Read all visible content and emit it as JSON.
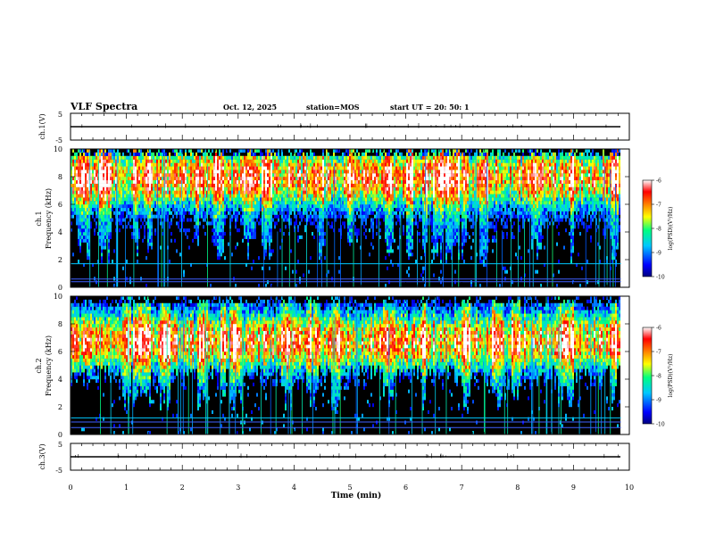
{
  "header": {
    "title": "VLF Spectra",
    "date": "Oct. 12, 2025",
    "station": "station=MOS",
    "start": "start UT =  20: 50: 1"
  },
  "chart_data": {
    "type": "heatmap",
    "title": "VLF Spectra",
    "xlabel": "Time (min)",
    "xlim": [
      0,
      10
    ],
    "x_ticks": [
      "0",
      "1",
      "2",
      "3",
      "4",
      "5",
      "6",
      "7",
      "8",
      "9",
      "10"
    ],
    "data_end_min": 9.85,
    "panels": [
      {
        "id": "ch1-wave",
        "type": "line",
        "ylabel": "ch.1(V)",
        "ylim": [
          -5,
          5
        ],
        "y_ticks": [
          "5",
          "-5"
        ],
        "level": 0
      },
      {
        "id": "ch1-spec",
        "type": "heatmap",
        "ylabel_lines": [
          "ch.1",
          "Frequency (kHz)"
        ],
        "ylim": [
          0,
          10
        ],
        "y_ticks": [
          "0",
          "2",
          "4",
          "6",
          "8",
          "10"
        ],
        "band_center_khz": 7.8,
        "band_low_khz": 3.0,
        "tone_lines_khz": [
          1.7,
          0.6,
          0.4
        ]
      },
      {
        "id": "ch2-spec",
        "type": "heatmap",
        "ylabel_lines": [
          "ch.2",
          "Frequency (kHz)"
        ],
        "ylim": [
          0,
          10
        ],
        "y_ticks": [
          "0",
          "2",
          "4",
          "6",
          "8",
          "10"
        ],
        "band_center_khz": 6.6,
        "band_low_khz": 3.0,
        "tone_lines_khz": [
          1.2,
          0.9,
          0.5
        ]
      },
      {
        "id": "ch3-wave",
        "type": "line",
        "ylabel": "ch.3(V)",
        "ylim": [
          -5,
          5
        ],
        "y_ticks": [
          "5",
          "-5"
        ],
        "level": 0
      }
    ],
    "colorbar": {
      "label": "log(PSD)(V²/Hz)",
      "range": [
        -10,
        -6
      ],
      "ticks": [
        "-6",
        "-7",
        "-8",
        "-9",
        "-10"
      ],
      "colors": [
        "#000080",
        "#0000ff",
        "#00c8ff",
        "#00ff80",
        "#ffff00",
        "#ff8000",
        "#ff0000",
        "#ffffff"
      ]
    }
  }
}
